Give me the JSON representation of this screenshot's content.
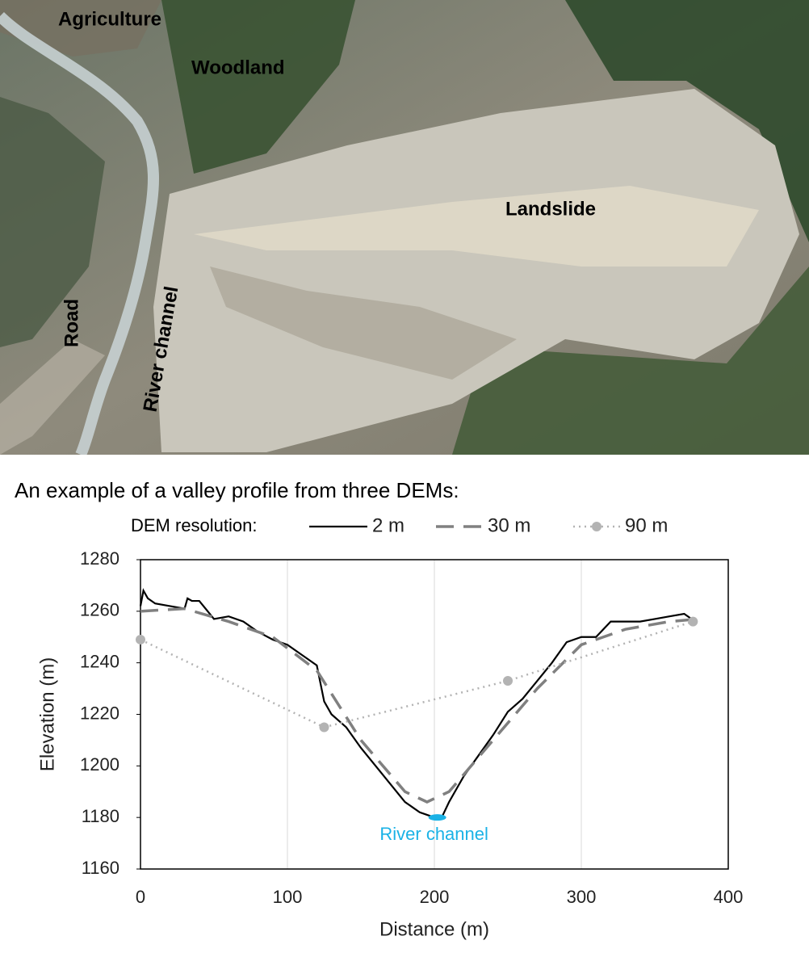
{
  "photo": {
    "labels": [
      "Agriculture",
      "Woodland",
      "Landslide",
      "Road",
      "River channel"
    ]
  },
  "caption": "An example of a valley profile from three DEMs:",
  "chart_data": {
    "type": "line",
    "legend_title": "DEM resolution:",
    "xlabel": "Distance (m)",
    "ylabel": "Elevation (m)",
    "xlim": [
      0,
      400
    ],
    "ylim": [
      1160,
      1280
    ],
    "xticks": [
      0,
      100,
      200,
      300,
      400
    ],
    "yticks": [
      1160,
      1180,
      1200,
      1220,
      1240,
      1260,
      1280
    ],
    "grid": "x",
    "legend": "top",
    "series": [
      {
        "name": "2 m",
        "color": "#000000",
        "line_style": "solid",
        "marker": false,
        "x": [
          0,
          2,
          5,
          10,
          20,
          30,
          32,
          35,
          40,
          50,
          60,
          70,
          80,
          90,
          100,
          110,
          115,
          120,
          125,
          130,
          140,
          150,
          160,
          170,
          180,
          190,
          195,
          200,
          205,
          210,
          220,
          230,
          240,
          250,
          260,
          270,
          280,
          290,
          300,
          310,
          320,
          330,
          340,
          350,
          360,
          370,
          375
        ],
        "values": [
          1262,
          1268,
          1265,
          1263,
          1262,
          1261,
          1265,
          1264,
          1264,
          1257,
          1258,
          1256,
          1252,
          1249,
          1247,
          1243,
          1241,
          1239,
          1225,
          1220,
          1215,
          1207,
          1200,
          1193,
          1186,
          1182,
          1181,
          1180,
          1180,
          1186,
          1196,
          1204,
          1212,
          1221,
          1226,
          1233,
          1240,
          1248,
          1250,
          1250,
          1256,
          1256,
          1256,
          1257,
          1258,
          1259,
          1257
        ]
      },
      {
        "name": "30 m",
        "color": "#808080",
        "line_style": "dashed",
        "marker": false,
        "x": [
          0,
          30,
          60,
          90,
          120,
          150,
          180,
          195,
          210,
          240,
          270,
          300,
          330,
          360,
          380
        ],
        "values": [
          1260,
          1261,
          1256,
          1250,
          1237,
          1210,
          1190,
          1186,
          1190,
          1210,
          1230,
          1247,
          1253,
          1256,
          1257
        ]
      },
      {
        "name": "90 m",
        "color": "#b3b3b3",
        "line_style": "dotted",
        "marker": true,
        "x": [
          0,
          125,
          250,
          376
        ],
        "values": [
          1249,
          1215,
          1233,
          1256
        ]
      }
    ],
    "annotations": [
      {
        "text": "River channel",
        "x": 202,
        "y": 1180,
        "color": "#1ab2e6"
      }
    ]
  }
}
